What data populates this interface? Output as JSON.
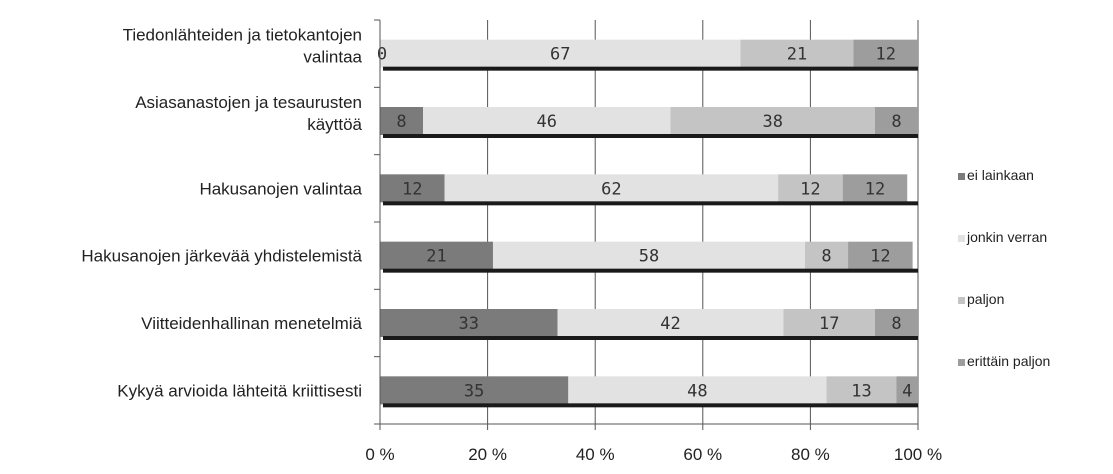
{
  "chart_data": {
    "type": "bar",
    "orientation": "horizontal",
    "stacked": "percent",
    "categories": [
      [
        "Tiedonlähteiden ja tietokantojen",
        "valintaa"
      ],
      [
        "Asiasanastojen ja tesaurusten",
        "käyttöä"
      ],
      [
        "Hakusanojen valintaa"
      ],
      [
        "Hakusanojen järkevää yhdistelemistä"
      ],
      [
        "Viitteidenhallinan menetelmiä"
      ],
      [
        "Kykyä arvioida lähteitä kriittisesti"
      ]
    ],
    "series": [
      {
        "name": "ei lainkaan",
        "color": "#7b7b7b",
        "values": [
          0,
          8,
          12,
          21,
          33,
          35
        ]
      },
      {
        "name": "jonkin verran",
        "color": "#e2e2e2",
        "values": [
          67,
          46,
          62,
          58,
          42,
          48
        ]
      },
      {
        "name": "paljon",
        "color": "#c4c4c4",
        "values": [
          21,
          38,
          12,
          8,
          17,
          13
        ]
      },
      {
        "name": "erittäin paljon",
        "color": "#9d9d9d",
        "values": [
          12,
          8,
          12,
          12,
          8,
          4
        ]
      }
    ],
    "xlim": [
      0,
      100
    ],
    "xticks": [
      "0 %",
      "20 %",
      "40 %",
      "60 %",
      "80 %",
      "100 %"
    ],
    "grid": true,
    "legend_position": "right",
    "data_labels": true
  }
}
